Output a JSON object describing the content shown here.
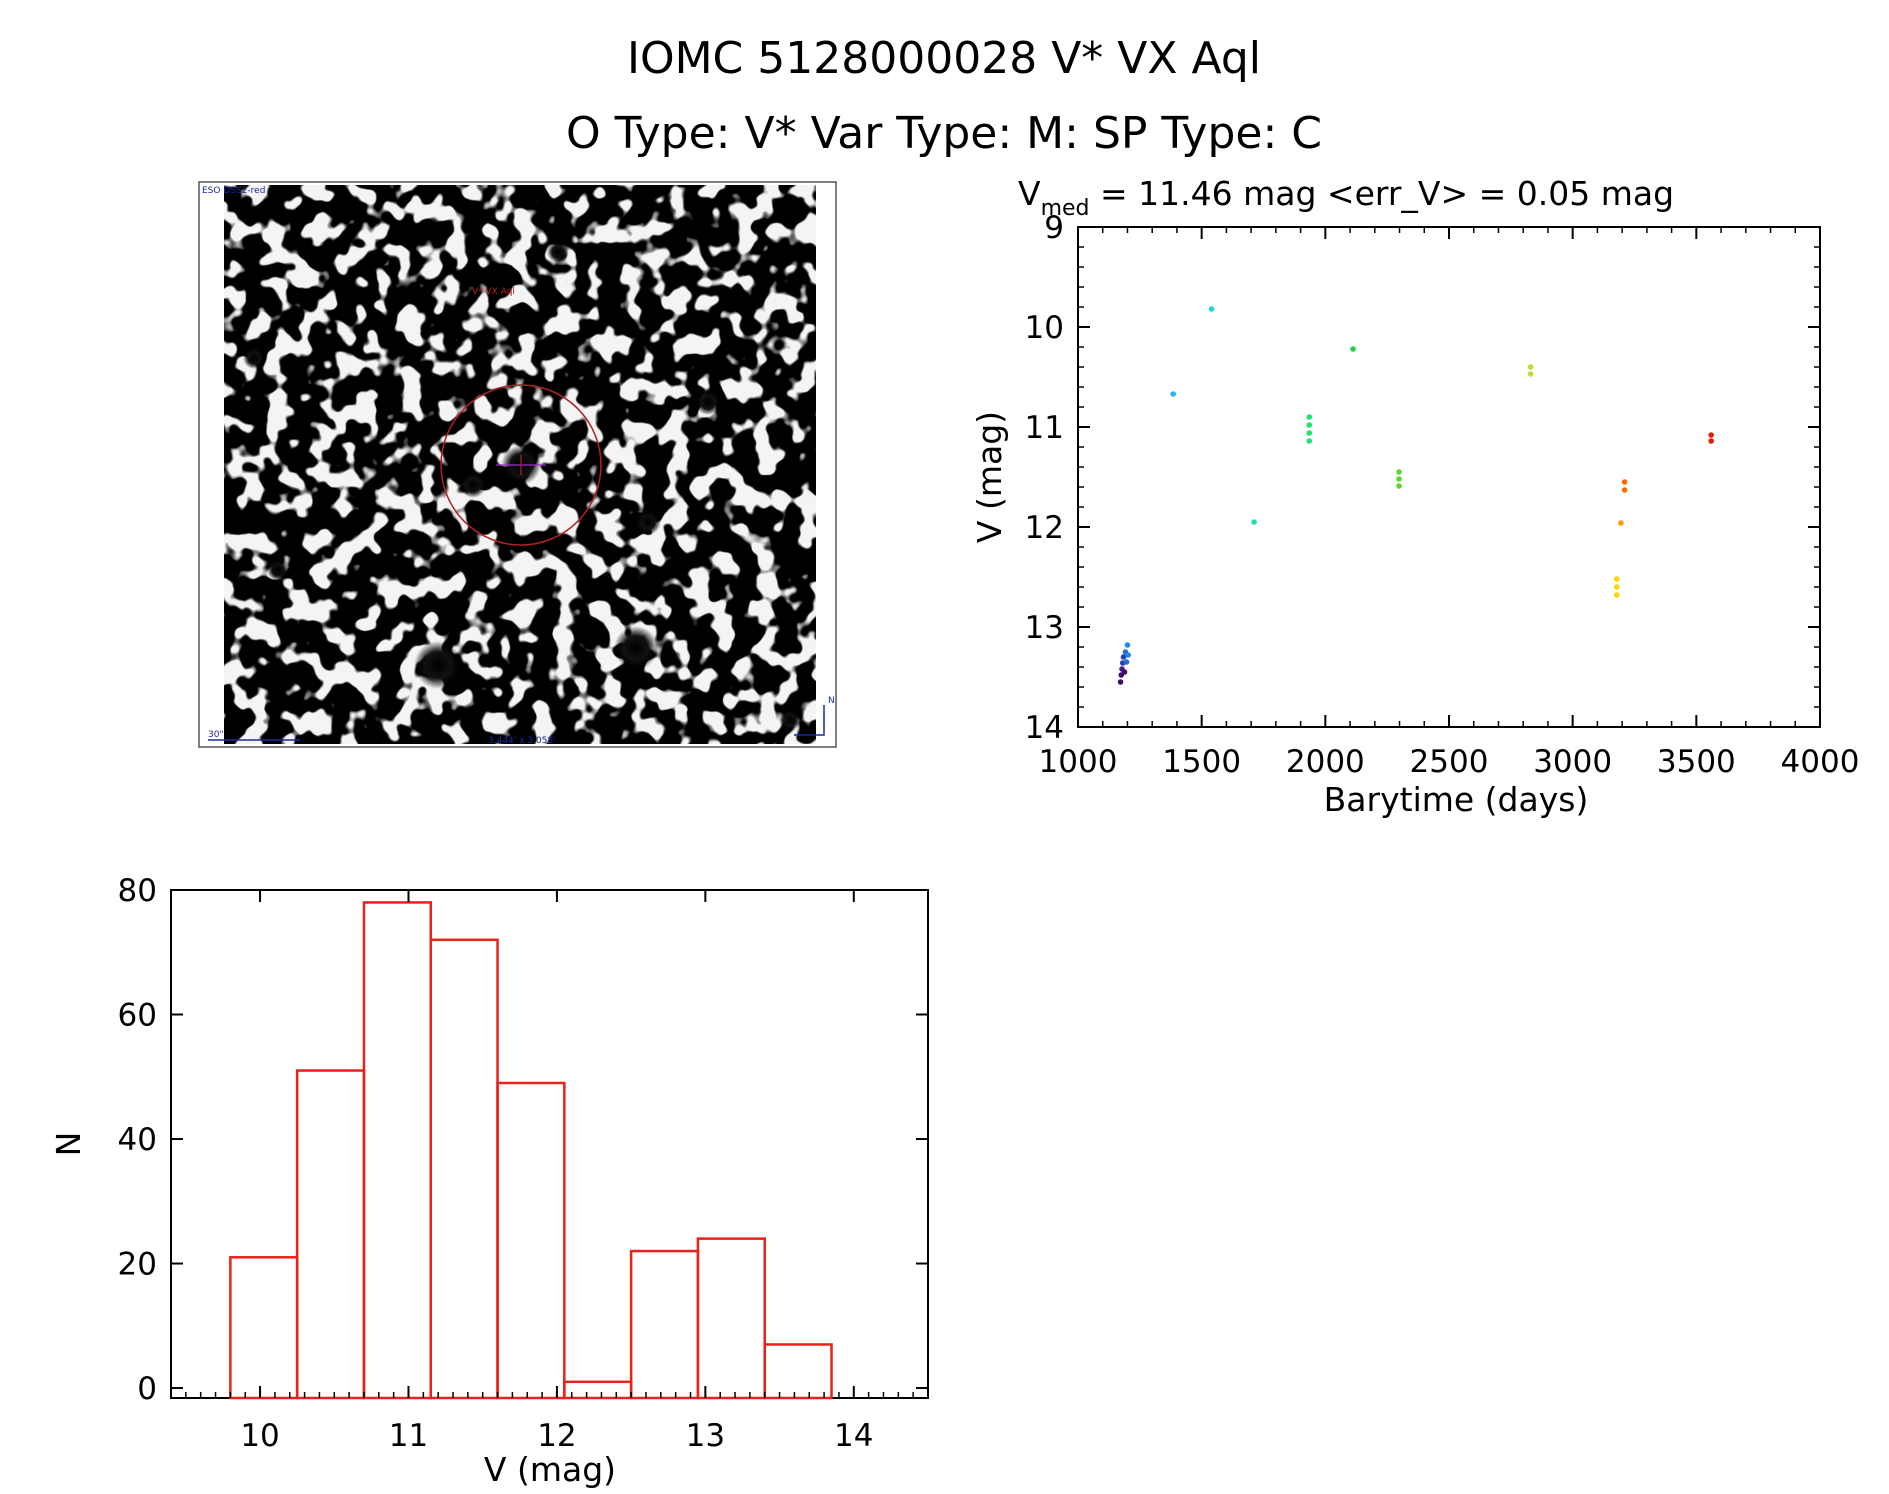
{
  "header": {
    "line1": "IOMC 5128000028    V* VX Aql",
    "line2": "O Type: V*  Var Type: M:  SP Type: C"
  },
  "finder": {
    "survey_label": "ESO DSS2-red",
    "target_label": "V* VX Aql",
    "scale_label": "30\"",
    "fov_label": "3.444' x 3.058'",
    "north_label": "N"
  },
  "lightcurve_title": {
    "prefix": "V",
    "subscript": "med",
    "rest": " = 11.46 mag <err_V> = 0.05 mag"
  },
  "chart_data": [
    {
      "type": "scatter",
      "title": "V_med = 11.46 mag <err_V> = 0.05 mag",
      "xlabel": "Barytime (days)",
      "ylabel": "V (mag)",
      "xlim": [
        1000,
        4000
      ],
      "ylim": [
        14,
        9
      ],
      "y_inverted": true,
      "xticks": [
        1000,
        1500,
        2000,
        2500,
        3000,
        3500,
        4000
      ],
      "yticks": [
        9,
        10,
        11,
        12,
        13,
        14
      ],
      "points": [
        {
          "x": 1172,
          "y": 13.55,
          "color": "#3b0d6e"
        },
        {
          "x": 1175,
          "y": 13.48,
          "color": "#3b0d6e"
        },
        {
          "x": 1178,
          "y": 13.42,
          "color": "#4b1c8c"
        },
        {
          "x": 1181,
          "y": 13.36,
          "color": "#2a3fb0"
        },
        {
          "x": 1184,
          "y": 13.3,
          "color": "#2a3fb0"
        },
        {
          "x": 1188,
          "y": 13.45,
          "color": "#3b0d6e"
        },
        {
          "x": 1192,
          "y": 13.25,
          "color": "#1f6fd6"
        },
        {
          "x": 1196,
          "y": 13.35,
          "color": "#1f6fd6"
        },
        {
          "x": 1200,
          "y": 13.18,
          "color": "#1f8ae0"
        },
        {
          "x": 1203,
          "y": 13.28,
          "color": "#1f8ae0"
        },
        {
          "x": 1385,
          "y": 10.67,
          "color": "#22b8e8"
        },
        {
          "x": 1540,
          "y": 9.82,
          "color": "#1fd6d6"
        },
        {
          "x": 1712,
          "y": 11.95,
          "color": "#1fe0b0"
        },
        {
          "x": 1935,
          "y": 10.9,
          "color": "#22e07a"
        },
        {
          "x": 1935,
          "y": 10.98,
          "color": "#22e07a"
        },
        {
          "x": 1935,
          "y": 11.06,
          "color": "#22e07a"
        },
        {
          "x": 1935,
          "y": 11.14,
          "color": "#22e07a"
        },
        {
          "x": 2112,
          "y": 10.22,
          "color": "#1fd64a"
        },
        {
          "x": 2298,
          "y": 11.45,
          "color": "#5fd62a"
        },
        {
          "x": 2298,
          "y": 11.52,
          "color": "#5fd62a"
        },
        {
          "x": 2298,
          "y": 11.59,
          "color": "#5fd62a"
        },
        {
          "x": 2830,
          "y": 10.4,
          "color": "#b8e030"
        },
        {
          "x": 2830,
          "y": 10.47,
          "color": "#b8e030"
        },
        {
          "x": 3178,
          "y": 12.52,
          "color": "#ffd400"
        },
        {
          "x": 3178,
          "y": 12.6,
          "color": "#ffd400"
        },
        {
          "x": 3178,
          "y": 12.68,
          "color": "#ffd400"
        },
        {
          "x": 3195,
          "y": 11.96,
          "color": "#ff9a00"
        },
        {
          "x": 3210,
          "y": 11.55,
          "color": "#ff6a00"
        },
        {
          "x": 3210,
          "y": 11.63,
          "color": "#ff6a00"
        },
        {
          "x": 3560,
          "y": 11.08,
          "color": "#e81a0a"
        },
        {
          "x": 3560,
          "y": 11.14,
          "color": "#e81a0a"
        }
      ]
    },
    {
      "type": "bar",
      "subtype": "histogram",
      "title": "",
      "xlabel": "V (mag)",
      "ylabel": "N",
      "xlim": [
        9.4,
        14.5
      ],
      "ylim": [
        0,
        80
      ],
      "xticks": [
        10,
        11,
        12,
        13,
        14
      ],
      "yticks": [
        0,
        20,
        40,
        60,
        80
      ],
      "bin_edges": [
        9.8,
        10.25,
        10.7,
        11.15,
        11.6,
        12.05,
        12.5,
        12.95,
        13.4,
        13.85
      ],
      "values": [
        21,
        51,
        78,
        72,
        49,
        1,
        22,
        24,
        7
      ],
      "color": "#e8211a"
    }
  ]
}
